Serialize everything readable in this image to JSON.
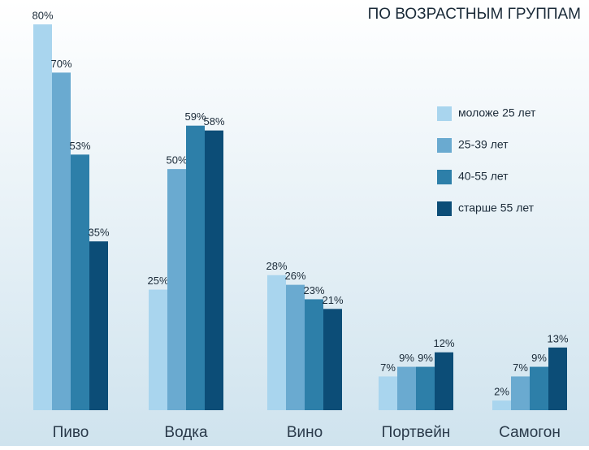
{
  "chart_data": {
    "type": "bar",
    "title": "ПО ВОЗРАСТНЫМ ГРУППАМ",
    "categories": [
      "Пиво",
      "Водка",
      "Вино",
      "Портвейн",
      "Самогон"
    ],
    "series": [
      {
        "name": "моложе 25 лет",
        "color": "#a9d5ee",
        "values": [
          80,
          25,
          28,
          7,
          2
        ],
        "value_labels": [
          "80%",
          "25%",
          "28%",
          "7%",
          "2%"
        ]
      },
      {
        "name": "25-39 лет",
        "color": "#6aaad0",
        "values": [
          70,
          50,
          26,
          9,
          7
        ],
        "value_labels": [
          "70%",
          "50%",
          "26%",
          "9%",
          "7%"
        ]
      },
      {
        "name": "40-55 лет",
        "color": "#2d7fa9",
        "values": [
          53,
          59,
          23,
          9,
          9
        ],
        "value_labels": [
          "53%",
          "59%",
          "23%",
          "9%",
          "9%"
        ]
      },
      {
        "name": "старше 55 лет",
        "color": "#0c4d77",
        "values": [
          35,
          58,
          21,
          12,
          13
        ],
        "value_labels": [
          "35%",
          "58%",
          "21%",
          "12%",
          "13%"
        ]
      }
    ]
  }
}
